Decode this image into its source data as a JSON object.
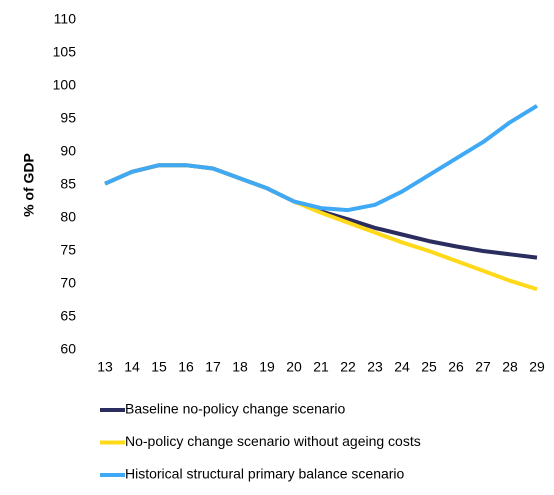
{
  "chart_data": {
    "type": "line",
    "ylabel": "% of GDP",
    "categories": [
      "13",
      "14",
      "15",
      "16",
      "17",
      "18",
      "19",
      "20",
      "21",
      "22",
      "23",
      "24",
      "25",
      "26",
      "27",
      "28",
      "29"
    ],
    "series": [
      {
        "name": "Baseline no-policy change scenario",
        "color": "#2b2d5e",
        "values": [
          85.2,
          87,
          88,
          88,
          87.5,
          86,
          84.5,
          82.5,
          81,
          79.8,
          78.5,
          77.5,
          76.5,
          75.7,
          75,
          74.5,
          74
        ]
      },
      {
        "name": "No-policy change scenario without ageing costs",
        "color": "#ffd91a",
        "values": [
          85.2,
          87,
          88,
          88,
          87.5,
          86,
          84.5,
          82.5,
          80.8,
          79.3,
          77.8,
          76.3,
          75,
          73.5,
          72,
          70.5,
          69.2
        ]
      },
      {
        "name": "Historical structural primary balance scenario",
        "color": "#3fa9f5",
        "values": [
          85.2,
          87,
          88,
          88,
          87.5,
          86,
          84.5,
          82.5,
          81.5,
          81.2,
          82,
          84,
          86.5,
          89,
          91.5,
          94.5,
          97
        ]
      }
    ],
    "ylim": [
      60,
      110
    ],
    "yticks": [
      60,
      65,
      70,
      75,
      80,
      85,
      90,
      95,
      100,
      105,
      110
    ],
    "grid": false
  }
}
